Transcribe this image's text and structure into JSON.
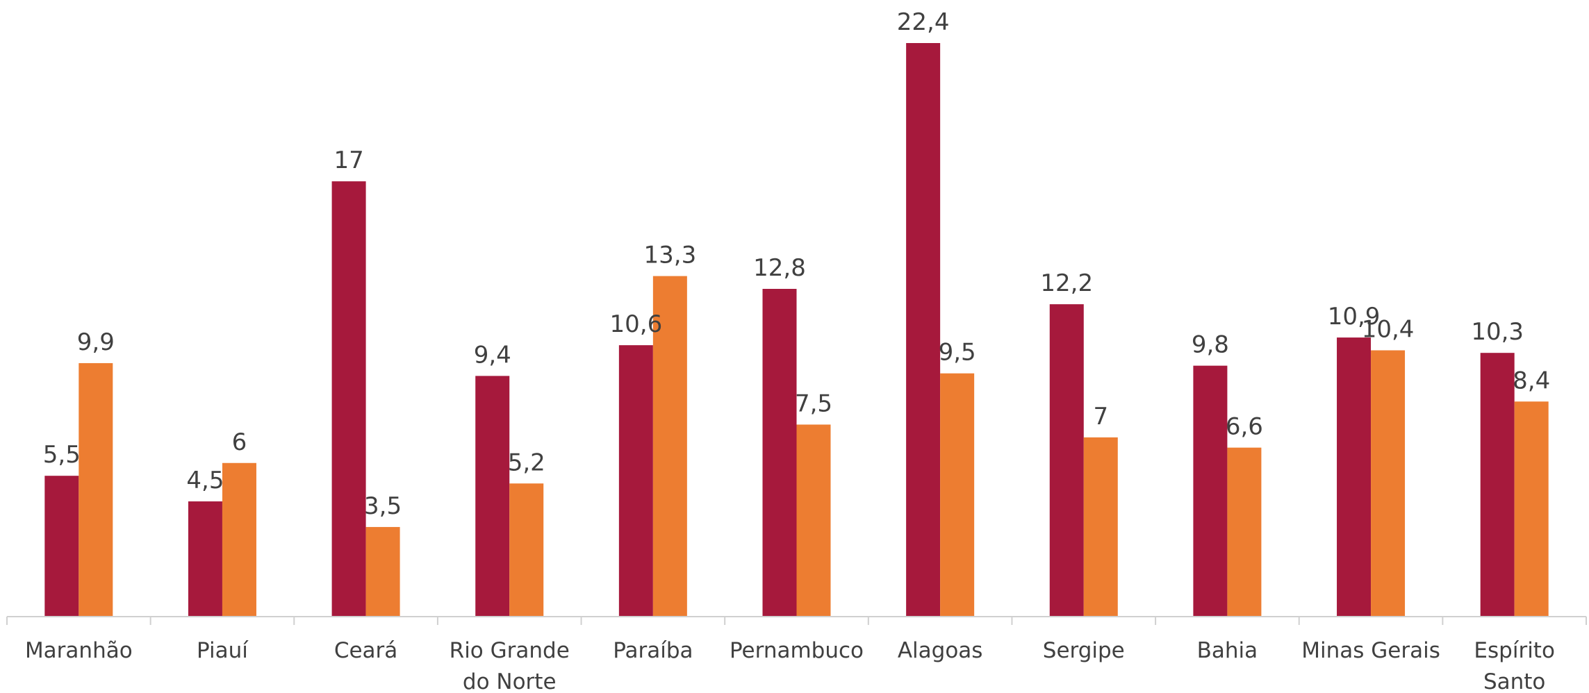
{
  "chart_data": {
    "type": "bar",
    "categories": [
      [
        "Maranhão"
      ],
      [
        "Piauí"
      ],
      [
        "Ceará"
      ],
      [
        "Rio Grande",
        "do Norte"
      ],
      [
        "Paraíba"
      ],
      [
        "Pernambuco"
      ],
      [
        "Alagoas"
      ],
      [
        "Sergipe"
      ],
      [
        "Bahia"
      ],
      [
        "Minas Gerais"
      ],
      [
        "Espírito",
        "Santo"
      ]
    ],
    "series": [
      {
        "color": "#a6193c",
        "values": [
          5.5,
          4.5,
          17,
          9.4,
          10.6,
          12.8,
          22.4,
          12.2,
          9.8,
          10.9,
          10.3
        ],
        "labels": [
          "5,5",
          "4,5",
          "17",
          "9,4",
          "10,6",
          "12,8",
          "22,4",
          "12,2",
          "9,8",
          "10,9",
          "10,3"
        ]
      },
      {
        "color": "#ed7d31",
        "values": [
          9.9,
          6,
          3.5,
          5.2,
          13.3,
          7.5,
          9.5,
          7,
          6.6,
          10.4,
          8.4
        ],
        "labels": [
          "9,9",
          "6",
          "3,5",
          "5,2",
          "13,3",
          "7,5",
          "9,5",
          "7",
          "6,6",
          "10,4",
          "8,4"
        ]
      }
    ],
    "ylim": [
      0,
      22.4
    ],
    "grid": false,
    "legend": "none",
    "title": "",
    "xlabel": "",
    "ylabel": ""
  }
}
